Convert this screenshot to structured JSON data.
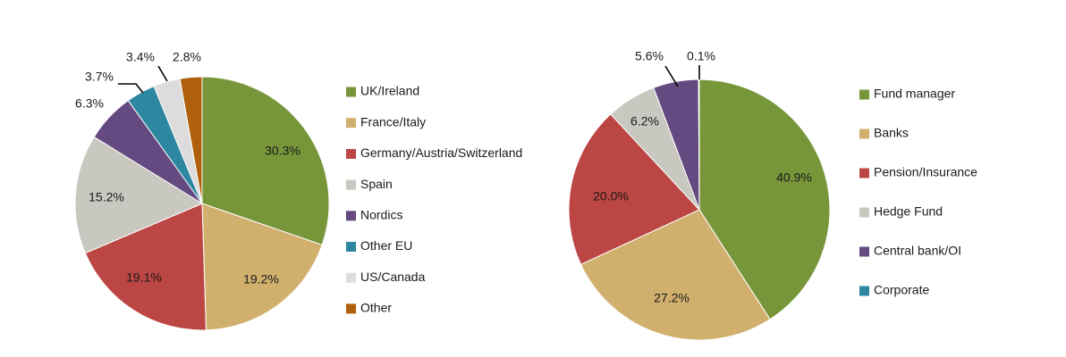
{
  "chart_data": [
    {
      "type": "pie",
      "categories": [
        "UK/Ireland",
        "France/Italy",
        "Germany/Austria/Switzerland",
        "Spain",
        "Nordics",
        "Other EU",
        "US/Canada",
        "Other"
      ],
      "values": [
        30.3,
        19.2,
        19.1,
        15.2,
        6.3,
        3.7,
        3.4,
        2.8
      ],
      "labels": [
        "30.3%",
        "19.2%",
        "19.1%",
        "15.2%",
        "6.3%",
        "3.7%",
        "3.4%",
        "2.8%"
      ],
      "colors": [
        "#77963a",
        "#d1b06e",
        "#bb4643",
        "#c8c8c0",
        "#644a80",
        "#2d87a0",
        "#dcdcdc",
        "#b0600a"
      ],
      "legend_position": "right",
      "title": ""
    },
    {
      "type": "pie",
      "categories": [
        "Fund manager",
        "Banks",
        "Pension/Insurance",
        "Hedge Fund",
        "Central bank/OI",
        "Corporate"
      ],
      "values": [
        40.9,
        27.2,
        20.0,
        6.2,
        5.6,
        0.1
      ],
      "labels": [
        "40.9%",
        "27.2%",
        "20.0%",
        "6.2%",
        "5.6%",
        "0.1%"
      ],
      "colors": [
        "#77963a",
        "#d1b06e",
        "#bb4643",
        "#c8c8c0",
        "#644a80",
        "#2d87a0"
      ],
      "legend_position": "right",
      "title": ""
    }
  ]
}
